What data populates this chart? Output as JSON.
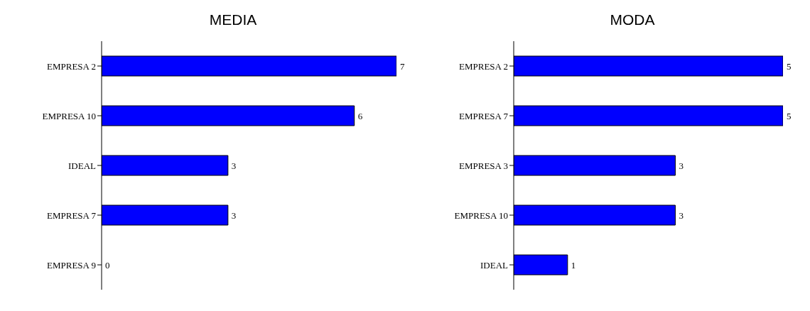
{
  "chart_data": [
    {
      "type": "bar",
      "title": "MEDIA",
      "orientation": "horizontal",
      "categories": [
        "EMPRESA 2",
        "EMPRESA 10",
        "IDEAL",
        "EMPRESA 7",
        "EMPRESA 9"
      ],
      "values": [
        7,
        6,
        3,
        3,
        0
      ],
      "color": "#0000ff",
      "xlim": [
        0,
        7
      ],
      "data_labels": true,
      "tick_labels": "y",
      "grid": false,
      "legend": false
    },
    {
      "type": "bar",
      "title": "MODA",
      "orientation": "horizontal",
      "categories": [
        "EMPRESA 2",
        "EMPRESA 7",
        "EMPRESA 3",
        "EMPRESA 10",
        "IDEAL"
      ],
      "values": [
        5,
        5,
        3,
        3,
        1
      ],
      "color": "#0000ff",
      "xlim": [
        0,
        5
      ],
      "data_labels": true,
      "tick_labels": "y",
      "grid": false,
      "legend": false
    }
  ]
}
